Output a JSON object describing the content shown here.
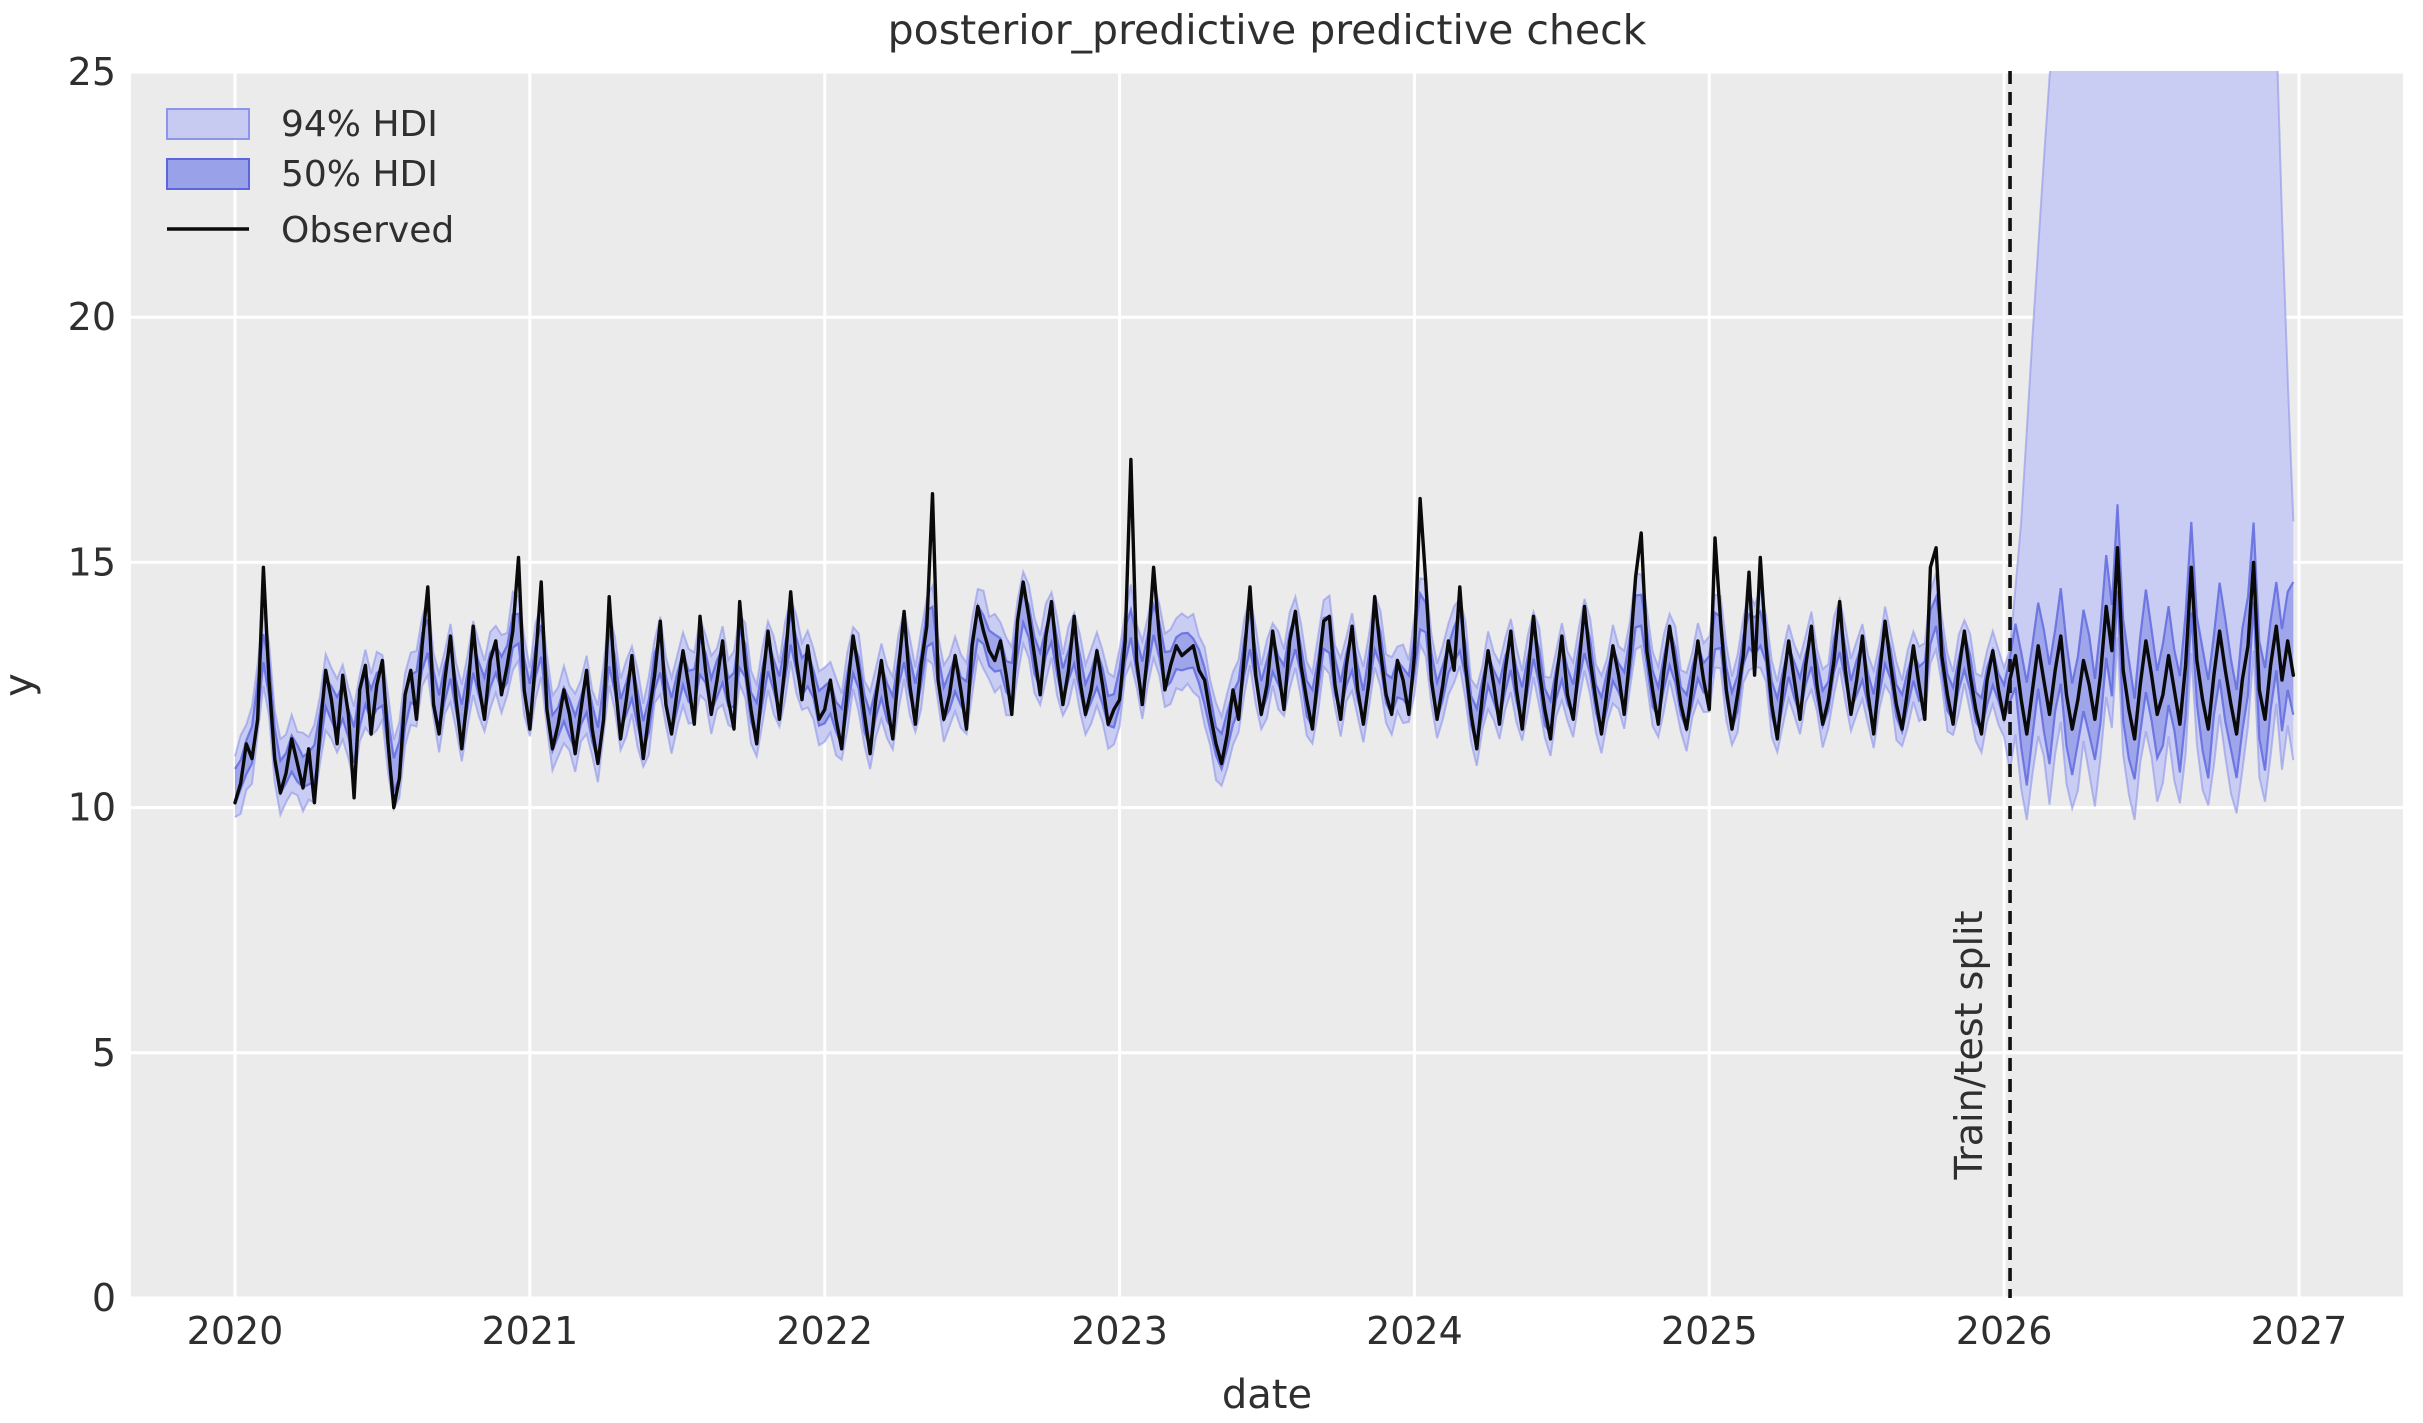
{
  "chart_data": {
    "type": "line",
    "title": "posterior_predictive predictive check",
    "xlabel": "date",
    "ylabel": "y",
    "xlim": [
      2019.647,
      2027.353
    ],
    "ylim": [
      0,
      25
    ],
    "xticks": [
      2020,
      2021,
      2022,
      2023,
      2024,
      2025,
      2026,
      2027
    ],
    "yticks": [
      0,
      5,
      10,
      15,
      20,
      25
    ],
    "grid": "white-on-gray",
    "legend_position": "upper-left",
    "legend": [
      {
        "label": "94% HDI",
        "kind": "patch"
      },
      {
        "label": "50% HDI",
        "kind": "patch"
      },
      {
        "label": "Observed",
        "kind": "line"
      }
    ],
    "annotation": {
      "label": "Train/test split",
      "x": 2026.02,
      "rotation": -90
    },
    "split_x": 2026.02,
    "x_start": 2020.0,
    "x_step_years": 0.01923076923,
    "n_points": 364,
    "observed": [
      10.1,
      10.5,
      11.3,
      11.0,
      11.8,
      14.9,
      12.6,
      11.0,
      10.3,
      10.7,
      11.4,
      10.9,
      10.4,
      11.2,
      10.1,
      11.6,
      12.8,
      12.2,
      11.3,
      12.7,
      11.9,
      10.2,
      12.4,
      12.9,
      11.5,
      12.5,
      13.0,
      11.3,
      10.0,
      10.6,
      12.3,
      12.8,
      11.8,
      13.3,
      14.5,
      12.1,
      11.5,
      12.6,
      13.5,
      12.2,
      11.2,
      12.3,
      13.7,
      12.5,
      11.8,
      13.0,
      13.4,
      12.3,
      12.9,
      13.6,
      15.1,
      12.4,
      11.6,
      13.0,
      14.6,
      12.0,
      11.2,
      11.7,
      12.4,
      11.9,
      11.1,
      12.0,
      12.8,
      11.6,
      10.9,
      11.8,
      14.3,
      12.6,
      11.4,
      12.2,
      13.1,
      12.0,
      11.0,
      11.9,
      12.7,
      13.8,
      12.1,
      11.5,
      12.4,
      13.2,
      12.5,
      11.7,
      13.9,
      12.8,
      11.9,
      12.6,
      13.4,
      12.2,
      11.6,
      14.2,
      12.9,
      12.0,
      11.3,
      12.5,
      13.6,
      12.7,
      11.8,
      12.9,
      14.4,
      13.0,
      12.2,
      13.3,
      12.5,
      11.8,
      12.0,
      12.6,
      11.8,
      11.2,
      12.4,
      13.5,
      12.8,
      11.9,
      11.1,
      12.2,
      13.0,
      12.1,
      11.4,
      12.8,
      14.0,
      12.5,
      11.7,
      12.9,
      13.7,
      16.4,
      12.6,
      11.8,
      12.3,
      13.1,
      12.4,
      11.6,
      13.3,
      14.1,
      13.6,
      13.2,
      13.0,
      13.4,
      12.7,
      11.9,
      13.8,
      14.6,
      13.9,
      13.1,
      12.3,
      13.5,
      14.2,
      13.0,
      12.1,
      12.8,
      13.9,
      12.6,
      11.9,
      12.4,
      13.2,
      12.5,
      11.7,
      12.0,
      12.2,
      13.4,
      17.1,
      13.0,
      12.1,
      13.2,
      14.9,
      13.5,
      12.4,
      12.9,
      13.3,
      13.1,
      13.2,
      13.3,
      12.8,
      12.6,
      11.9,
      11.3,
      10.9,
      11.5,
      12.4,
      11.8,
      13.1,
      14.5,
      12.7,
      11.9,
      12.5,
      13.6,
      12.8,
      12.0,
      13.4,
      14.0,
      12.9,
      12.2,
      11.6,
      12.7,
      13.8,
      13.9,
      12.5,
      11.8,
      12.9,
      13.7,
      12.4,
      11.7,
      12.6,
      14.3,
      13.2,
      12.3,
      11.9,
      13.0,
      12.6,
      11.9,
      13.1,
      16.3,
      14.6,
      12.6,
      11.8,
      12.5,
      13.4,
      12.8,
      14.5,
      12.9,
      11.9,
      11.2,
      12.3,
      13.2,
      12.5,
      11.7,
      12.8,
      13.6,
      12.4,
      11.6,
      12.7,
      13.9,
      12.8,
      12.0,
      11.4,
      12.6,
      13.5,
      12.3,
      11.8,
      12.9,
      14.1,
      13.0,
      12.2,
      11.5,
      12.4,
      13.3,
      12.7,
      11.9,
      13.1,
      14.7,
      15.6,
      13.2,
      12.4,
      11.7,
      12.8,
      13.7,
      12.9,
      12.1,
      11.6,
      12.5,
      13.4,
      12.6,
      12.0,
      15.5,
      13.8,
      12.4,
      11.6,
      12.3,
      13.1,
      14.8,
      12.7,
      15.1,
      13.3,
      12.1,
      11.4,
      12.5,
      13.4,
      12.6,
      11.8,
      12.9,
      13.7,
      12.5,
      11.7,
      12.2,
      13.0,
      14.2,
      12.8,
      11.9,
      12.6,
      13.5,
      12.3,
      11.5,
      12.7,
      13.8,
      12.9,
      12.1,
      11.6,
      12.4,
      13.3,
      12.5,
      11.8,
      14.9,
      15.3,
      13.1,
      12.3,
      11.7,
      12.8,
      13.6,
      12.7,
      12.0,
      11.5,
      12.6,
      13.2,
      12.4,
      11.8,
      12.6,
      13.1,
      12.2,
      11.5,
      12.4,
      13.3,
      12.6,
      11.9,
      12.8,
      13.5,
      12.3,
      11.6,
      12.2,
      13.0,
      12.5,
      11.8,
      12.7,
      14.1,
      13.2,
      15.3,
      12.8,
      12.0,
      11.4,
      12.5,
      13.4,
      12.7,
      11.9,
      12.3,
      13.1,
      12.4,
      11.7,
      12.9,
      14.9,
      13.0,
      12.2,
      11.6,
      12.7,
      13.6,
      12.8,
      12.1,
      11.5,
      12.6,
      13.3,
      15.0,
      12.4,
      11.8,
      12.9,
      13.7,
      12.6,
      13.4,
      12.7
    ],
    "hdi94": {
      "in_sample_halfwidth": 0.62,
      "center_clamp": [
        10.4,
        14.3
      ],
      "forecast_lower_offset": 1.55,
      "forecast_lower_floor": 9.75,
      "forecast_upper_breakpoints": [
        [
          2026.02,
          13.2
        ],
        [
          2026.06,
          16.0
        ],
        [
          2026.1,
          20.0
        ],
        [
          2026.15,
          24.6
        ],
        [
          2026.19,
          27.5
        ],
        [
          2026.85,
          28.0
        ],
        [
          2026.92,
          26.5
        ],
        [
          2026.95,
          20.5
        ],
        [
          2026.981,
          15.8
        ]
      ]
    },
    "hdi50": {
      "in_sample_halfwidth": 0.28,
      "center_clamp": [
        10.4,
        14.3
      ],
      "forecast_halfwidth": 0.8,
      "forecast_end_upper": 14.6
    },
    "split_index": 313
  },
  "colors": {
    "figure_bg": "#ffffff",
    "axes_bg": "#ebebeb",
    "grid": "#ffffff",
    "hdi94_fill": "#c7cbf2",
    "hdi94_edge": "#8d95e8",
    "hdi50_fill": "#99a1e9",
    "hdi50_edge": "#5d66dd",
    "observed_line": "#0a0a0a",
    "split_line": "#111111",
    "text": "#2f2f2f"
  }
}
